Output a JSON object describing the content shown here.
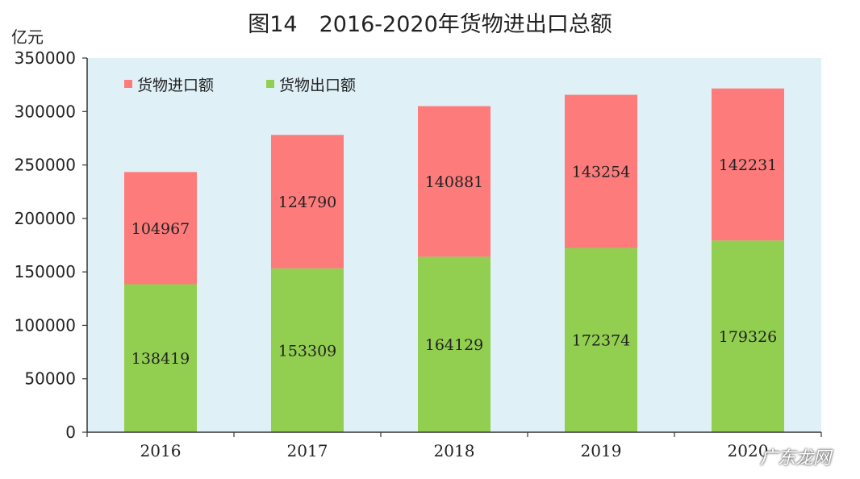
{
  "chart_data": {
    "type": "bar",
    "stacked": true,
    "title": "图14　2016-2020年货物进出口总额",
    "unit": "亿元",
    "categories": [
      "2016",
      "2017",
      "2018",
      "2019",
      "2020"
    ],
    "series": [
      {
        "name": "货物出口额",
        "color": "#92cf50",
        "values": [
          138419,
          153309,
          164129,
          172374,
          179326
        ]
      },
      {
        "name": "货物进口额",
        "color": "#fd7b7b",
        "values": [
          104967,
          124790,
          140881,
          143254,
          142231
        ]
      }
    ],
    "legend_order": [
      1,
      0
    ],
    "ylim": [
      0,
      350000
    ],
    "yticks": [
      0,
      50000,
      100000,
      150000,
      200000,
      250000,
      300000,
      350000
    ],
    "grid": false,
    "legend": "top-left",
    "plot_background": "#dff0f6"
  },
  "watermark": "广东龙网"
}
